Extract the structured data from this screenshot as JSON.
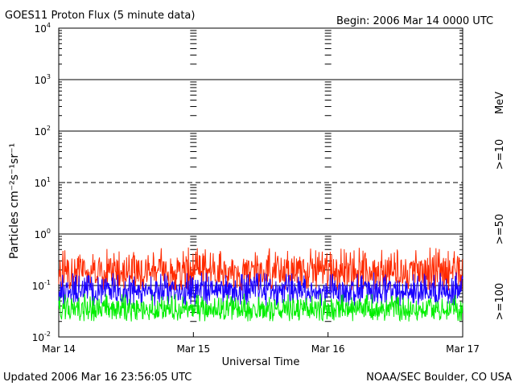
{
  "header": {
    "title": "GOES11 Proton Flux (5 minute data)",
    "begin": "Begin: 2006 Mar 14 0000 UTC"
  },
  "footer": {
    "updated": "Updated 2006 Mar 16 23:56:05 UTC",
    "source": "NOAA/SEC Boulder, CO USA"
  },
  "colors": {
    "ge10": "#ff2a00",
    "ge50": "#1a00ff",
    "ge100": "#00ee00",
    "mev_label": "#000000"
  },
  "chart_data": {
    "type": "line",
    "xlabel": "Universal Time",
    "ylabel": "Particles cm⁻²s⁻¹sr⁻¹",
    "x_ticks": [
      "Mar 14",
      "Mar 15",
      "Mar 16",
      "Mar 17"
    ],
    "y_ticks": [
      {
        "base": "10",
        "exp": "-2"
      },
      {
        "base": "10",
        "exp": "-1"
      },
      {
        "base": "10",
        "exp": "0"
      },
      {
        "base": "10",
        "exp": "1"
      },
      {
        "base": "10",
        "exp": "2"
      },
      {
        "base": "10",
        "exp": "3"
      },
      {
        "base": "10",
        "exp": "4"
      }
    ],
    "ylim_log10": [
      -2,
      4
    ],
    "x_range_days": [
      0,
      3
    ],
    "y_scale": "log",
    "grid": "horizontal at each decade, dashed at 10^1",
    "legend": {
      "units": "MeV",
      "entries": [
        ">=10",
        ">=50",
        ">=100"
      ],
      "placement": "right, vertical"
    },
    "series": [
      {
        "name": ">=10",
        "typical": 0.2,
        "min": 0.08,
        "max": 0.55
      },
      {
        "name": ">=50",
        "typical": 0.08,
        "min": 0.04,
        "max": 0.18
      },
      {
        "name": ">=100",
        "typical": 0.035,
        "min": 0.02,
        "max": 0.07
      }
    ]
  }
}
